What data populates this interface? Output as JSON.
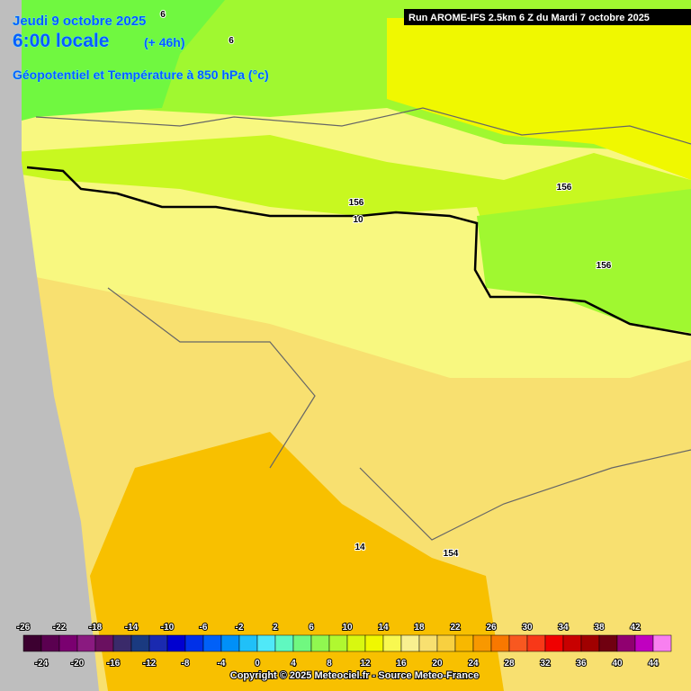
{
  "header": {
    "date": "Jeudi 9 octobre 2025",
    "time": "6:00 locale",
    "lead": "(+ 46h)",
    "field": "Géopotentiel et Température à 850 hPa (°c)",
    "run": "Run AROME-IFS 2.5km 6 Z du Mardi 7 octobre 2025"
  },
  "contour_labels": [
    "6",
    "6",
    "156",
    "10",
    "156",
    "156",
    "14",
    "154"
  ],
  "colorbar": {
    "labels_top": [
      -26,
      -22,
      -18,
      -14,
      -10,
      -6,
      -2,
      2,
      6,
      10,
      14,
      18,
      22,
      26,
      30,
      34,
      38,
      42
    ],
    "labels_bottom": [
      -24,
      -20,
      -16,
      -12,
      -8,
      -4,
      0,
      4,
      8,
      12,
      16,
      20,
      24,
      28,
      32,
      36,
      40,
      44
    ],
    "colors": [
      "#3c0030",
      "#5a0050",
      "#7a0070",
      "#8a1a80",
      "#6a1060",
      "#3a2a6a",
      "#1a3a80",
      "#1a2ab0",
      "#0000d0",
      "#0030e8",
      "#0060f8",
      "#0090f8",
      "#20c0f8",
      "#50e8f8",
      "#60f8c0",
      "#70f880",
      "#90f850",
      "#b0f830",
      "#d8f810",
      "#f0f800",
      "#f8f850",
      "#f8f090",
      "#f8e070",
      "#f8d040",
      "#f8b800",
      "#f89800",
      "#f87800",
      "#f85820",
      "#f83818",
      "#f00000",
      "#c80000",
      "#a00000",
      "#700010",
      "#900070",
      "#c000c0",
      "#f880f0"
    ]
  },
  "footer": {
    "copyright": "Copyright © 2025 Meteociel.fr - Source Meteo-France"
  }
}
